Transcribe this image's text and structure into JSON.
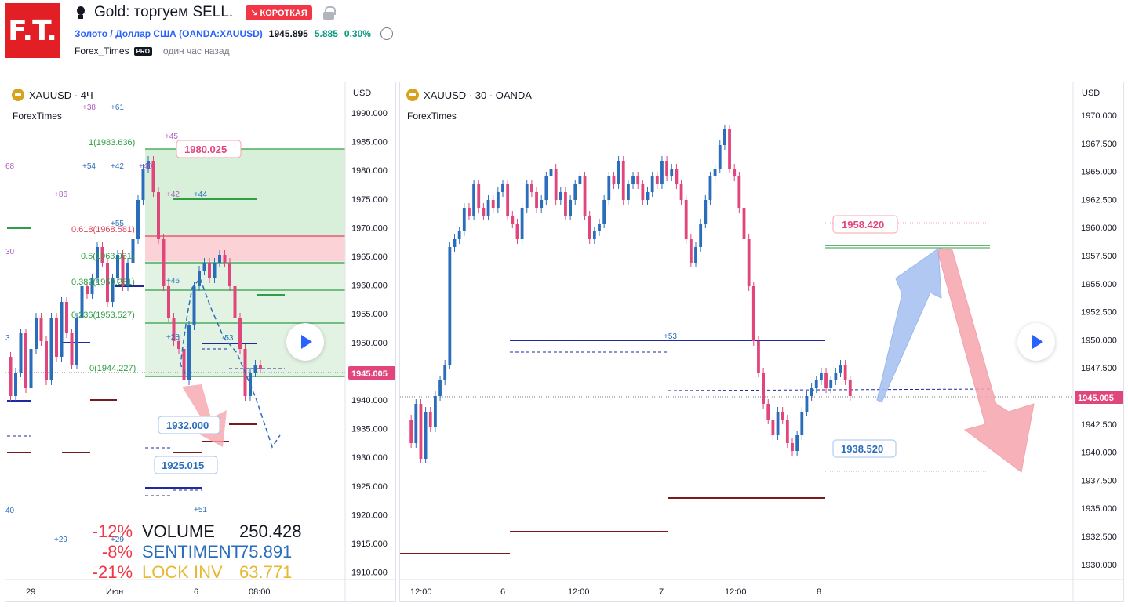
{
  "header": {
    "logo_text": "F.T.",
    "idea_title": "Gold: торгуем SELL.",
    "badge_short": "↘ КОРОТКАЯ",
    "symbol_link": "Золото / Доллар США (OANDA:XAUUSD)",
    "price": "1945.895",
    "change": "5.885",
    "change_pct": "0.30%",
    "author": "Forex_Times",
    "pro_badge": "PRO",
    "published": "один час назад"
  },
  "left_chart": {
    "symbol": "XAUUSD · 4Ч",
    "watermark": "ForexTimes",
    "currency": "USD",
    "y_ticks": [
      "1990.000",
      "1985.000",
      "1980.000",
      "1975.000",
      "1970.000",
      "1965.000",
      "1960.000",
      "1955.000",
      "1950.000",
      "1945.000",
      "1940.000",
      "1935.000",
      "1930.000",
      "1925.000",
      "1920.000",
      "1915.000",
      "1910.000"
    ],
    "x_ticks": [
      "29",
      "Июн",
      "6",
      "08:00"
    ],
    "last_price": "1945.005",
    "fib_labels": [
      "1(1983.636)",
      "0.618(1968.581)",
      "0.5(1963.931)",
      "0.382(1959.281)",
      "0.236(1953.527)",
      "0(1944.227)"
    ],
    "callouts": {
      "target_high": "1980.025",
      "target_low1": "1932.000",
      "target_low2": "1925.015"
    },
    "markers": [
      "+38",
      "+61",
      "+45",
      "+54",
      "+42",
      "+40",
      "+42",
      "+44",
      "+55",
      "+46",
      "+28",
      "-53",
      "+51",
      "+29",
      "+29",
      "68",
      "+86",
      "30",
      "3",
      "40"
    ],
    "stats": {
      "volume_pct": "-12%",
      "volume_label": "VOLUME",
      "volume_value": "250.428",
      "sentiment_pct": "-8%",
      "sentiment_label": "SENTIMENT",
      "sentiment_value": "75.891",
      "lock_pct": "-21%",
      "lock_label": "LOCK INV",
      "lock_value": "63.771"
    }
  },
  "right_chart": {
    "symbol": "XAUUSD · 30 · OANDA",
    "watermark": "ForexTimes",
    "currency": "USD",
    "y_ticks": [
      "1970.000",
      "1967.500",
      "1965.000",
      "1962.500",
      "1960.000",
      "1957.500",
      "1955.000",
      "1952.500",
      "1950.000",
      "1947.500",
      "1945.000",
      "1942.500",
      "1940.000",
      "1937.500",
      "1935.000",
      "1932.500",
      "1930.000"
    ],
    "x_ticks": [
      "12:00",
      "6",
      "12:00",
      "7",
      "12:00",
      "8"
    ],
    "last_price": "1945.005",
    "callouts": {
      "target_high": "1958.420",
      "target_low": "1938.520"
    },
    "marker": "+53"
  },
  "colors": {
    "up": "#2a6ebb",
    "down": "#e0457b",
    "green_zone": "#d8f0d9",
    "red_zone": "#fbd3d7",
    "price_tag": "#e0457b"
  }
}
